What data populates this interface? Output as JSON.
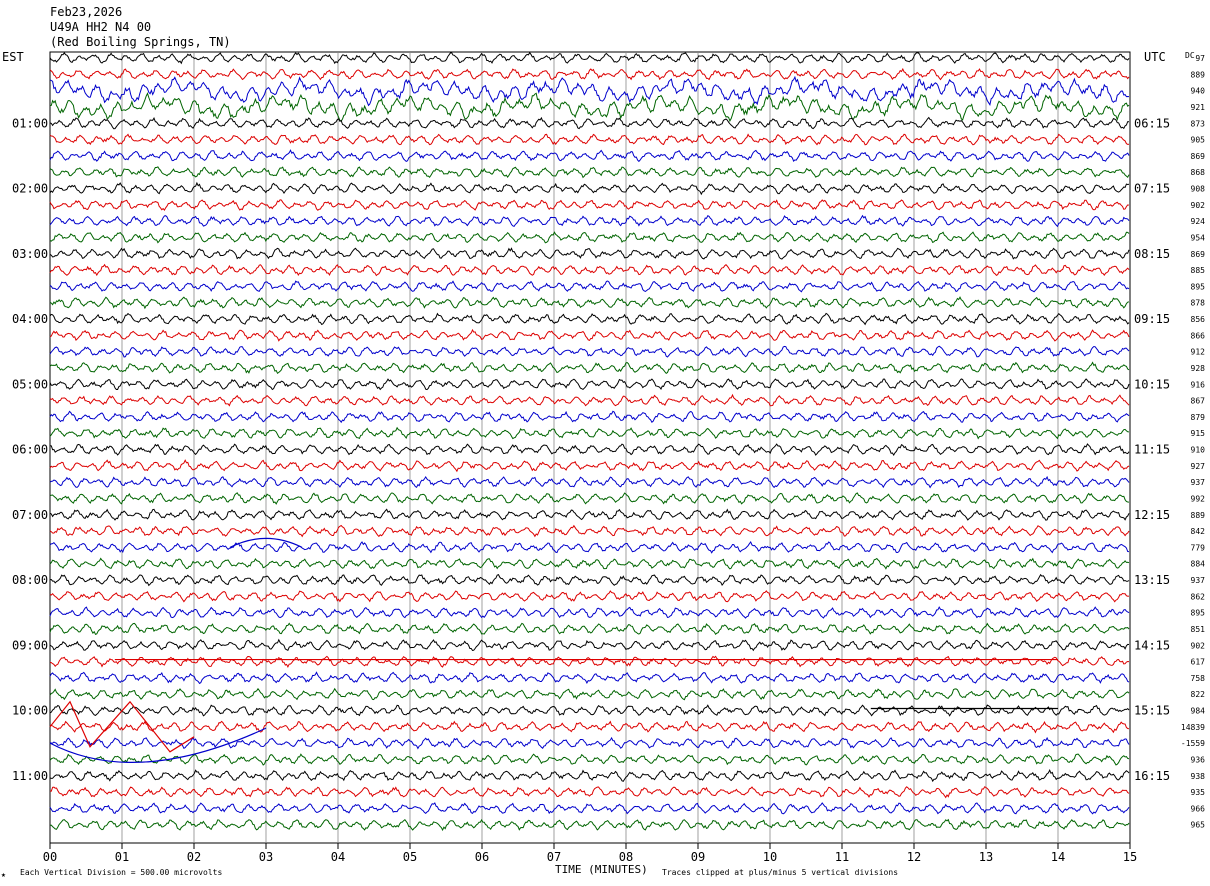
{
  "header": {
    "date": "Feb23,2026",
    "station": "U49A HH2 N4 00",
    "location": "(Red Boiling Springs, TN)"
  },
  "left_zone": "EST",
  "right_zone": "UTC",
  "dc_label": "DC",
  "footer": {
    "vertical_division": "Each Vertical Division =  500.00 microvolts",
    "x_title": "TIME (MINUTES)",
    "clip_note": "Traces clipped at plus/minus 5 vertical divisions"
  },
  "colors": {
    "black": "#000000",
    "red": "#dd0000",
    "blue": "#0000cc",
    "green": "#006400"
  },
  "chart_data": {
    "type": "line",
    "title": "",
    "xlabel": "TIME (MINUTES)",
    "ylabel": "",
    "xlim": [
      0,
      15
    ],
    "x_ticks": [
      "00",
      "01",
      "02",
      "03",
      "04",
      "05",
      "06",
      "07",
      "08",
      "09",
      "10",
      "11",
      "12",
      "13",
      "14",
      "15"
    ],
    "grid": true,
    "trace_minutes": 15,
    "trace_colors_cycle": [
      "black",
      "red",
      "blue",
      "green"
    ],
    "est_hour_labels": [
      "01:00",
      "02:00",
      "03:00",
      "04:00",
      "05:00",
      "06:00",
      "07:00",
      "08:00",
      "09:00",
      "10:00",
      "11:00"
    ],
    "utc_hour_labels": [
      "06:15",
      "07:15",
      "08:15",
      "09:15",
      "10:15",
      "11:15",
      "12:15",
      "13:15",
      "14:15",
      "15:15",
      "16:15"
    ],
    "dc_offsets": [
      "97",
      "889",
      "940",
      "921",
      "873",
      "905",
      "869",
      "868",
      "908",
      "902",
      "924",
      "954",
      "869",
      "885",
      "895",
      "878",
      "856",
      "866",
      "912",
      "928",
      "916",
      "867",
      "879",
      "915",
      "910",
      "927",
      "937",
      "992",
      "889",
      "842",
      "779",
      "884",
      "937",
      "862",
      "895",
      "851",
      "902",
      "617",
      "758",
      "822",
      "984",
      "14839",
      "-1559",
      "936",
      "938",
      "935",
      "966",
      "965"
    ],
    "notable_events": [
      {
        "trace": 2,
        "from_min": 0.0,
        "to_min": 15.0,
        "note": "elevated amplitude"
      },
      {
        "trace": 3,
        "from_min": 0.0,
        "to_min": 15.0,
        "note": "elevated amplitude"
      },
      {
        "trace": 30,
        "from_min": 2.5,
        "to_min": 3.5,
        "note": "low-frequency bump"
      },
      {
        "trace": 37,
        "from_min": 0.9,
        "to_min": 14.0,
        "note": "clipped trace / flat segments"
      },
      {
        "trace": 40,
        "from_min": 11.4,
        "to_min": 14.0,
        "note": "clipped trace"
      },
      {
        "trace": 41,
        "from_min": 0.0,
        "to_min": 2.0,
        "note": "large swings, clipped"
      },
      {
        "trace": 42,
        "from_min": 0.0,
        "to_min": 3.0,
        "note": "large offset swing"
      }
    ]
  }
}
